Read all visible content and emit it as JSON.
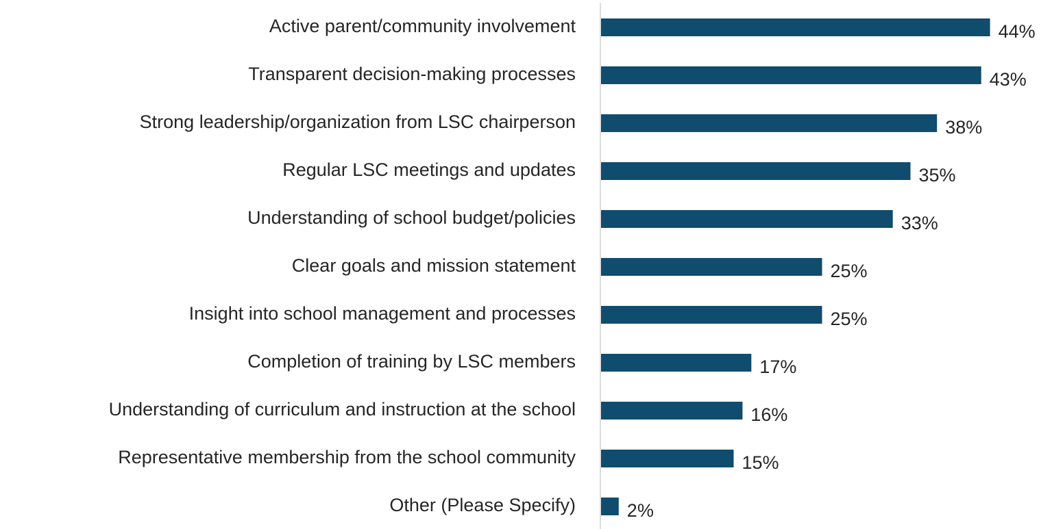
{
  "chart_data": {
    "type": "bar",
    "orientation": "horizontal",
    "categories": [
      "Active parent/community involvement",
      "Transparent decision-making processes",
      "Strong leadership/organization from LSC chairperson",
      "Regular LSC meetings and updates",
      "Understanding of school budget/policies",
      "Clear goals and mission statement",
      "Insight into school management and processes",
      "Completion of training by LSC members",
      "Understanding of curriculum and instruction at the school",
      "Representative membership from the school community",
      "Other (Please Specify)"
    ],
    "values": [
      44,
      43,
      38,
      35,
      33,
      25,
      25,
      17,
      16,
      15,
      2
    ],
    "value_labels": [
      "44%",
      "43%",
      "38%",
      "35%",
      "33%",
      "25%",
      "25%",
      "17%",
      "16%",
      "15%",
      "2%"
    ],
    "color": "#0f4c6e"
  }
}
